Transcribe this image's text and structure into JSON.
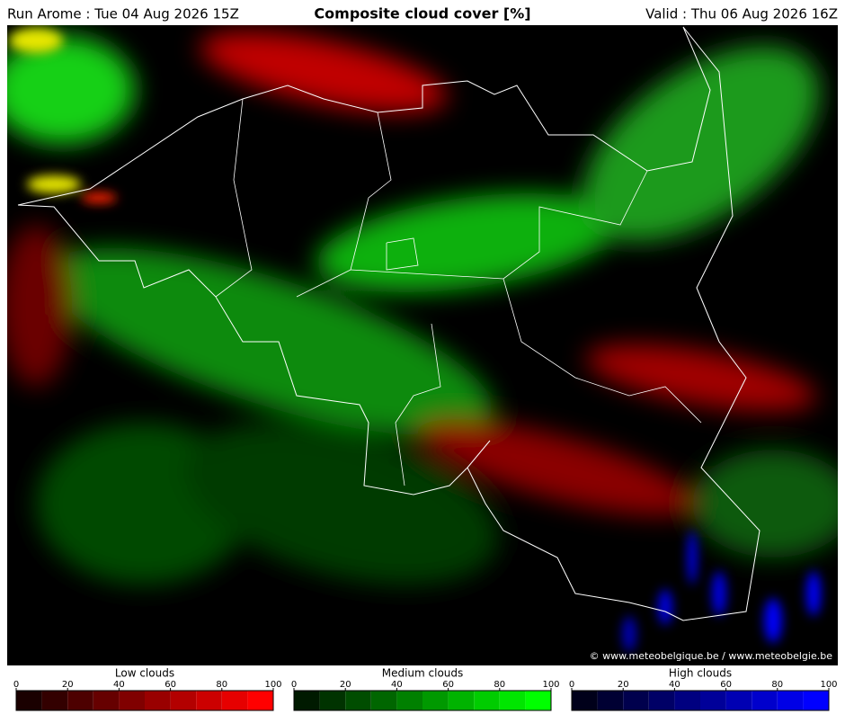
{
  "header": {
    "run": "Run Arome : Tue 04 Aug 2026 15Z",
    "title": "Composite cloud cover [%]",
    "valid": "Valid : Thu 06 Aug 2026 16Z"
  },
  "copyright": "© www.meteobelgique.be / www.meteobelgie.be",
  "legends": [
    {
      "label": "Low clouds",
      "ticks": [
        0,
        20,
        40,
        60,
        80,
        100
      ],
      "colors": [
        "#1a0000",
        "#330000",
        "#4d0000",
        "#660000",
        "#800000",
        "#990000",
        "#b30000",
        "#cc0000",
        "#e60000",
        "#ff0000"
      ]
    },
    {
      "label": "Medium clouds",
      "ticks": [
        0,
        20,
        40,
        60,
        80,
        100
      ],
      "colors": [
        "#001a00",
        "#003300",
        "#004d00",
        "#006600",
        "#008000",
        "#009900",
        "#00b300",
        "#00cc00",
        "#00e600",
        "#00ff00"
      ]
    },
    {
      "label": "High clouds",
      "ticks": [
        0,
        20,
        40,
        60,
        80,
        100
      ],
      "colors": [
        "#00001a",
        "#000033",
        "#00004d",
        "#000066",
        "#000080",
        "#000099",
        "#0000b3",
        "#0000cc",
        "#0000e6",
        "#0000ff"
      ]
    }
  ]
}
